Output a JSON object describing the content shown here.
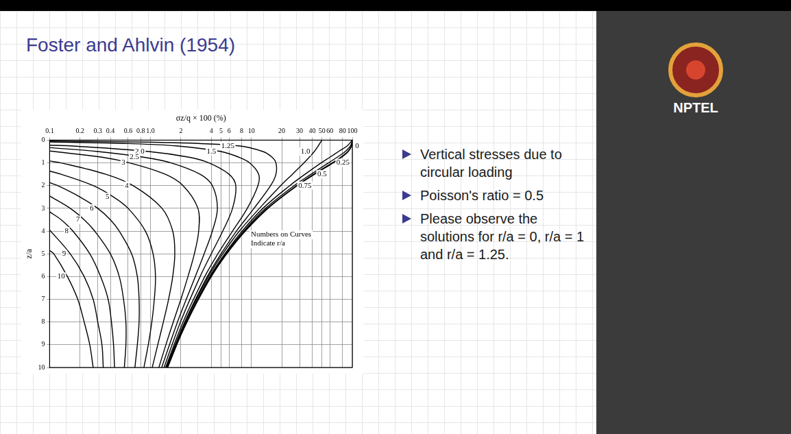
{
  "slide": {
    "title": "Foster and Ahlvin (1954)",
    "bullets": [
      "Vertical stresses due to circular loading",
      "Poisson's ratio = 0.5",
      "Please observe the solutions for r/a = 0, r/a = 1 and r/a = 1.25."
    ],
    "logo": "NPTEL"
  },
  "chart_data": {
    "type": "line",
    "x_label": "σz/q × 100 (%)",
    "y_label": "z/a",
    "annotations": [
      "Numbers on Curves Indicate r/a"
    ],
    "log": "x",
    "grid": true,
    "color": "#000000",
    "xlim": [
      0.1,
      100
    ],
    "xticks": [
      0.1,
      0.2,
      0.3,
      0.4,
      0.6,
      0.8,
      {
        "value": 1,
        "label": "1.0"
      },
      2,
      4,
      5,
      6,
      8,
      10,
      20,
      30,
      40,
      50,
      60,
      80,
      100
    ],
    "ylim": [
      10,
      0
    ],
    "yticks": [
      0,
      1,
      2,
      3,
      4,
      5,
      6,
      7,
      8,
      9,
      10
    ],
    "series": [
      {
        "name": "0",
        "x": [
          100,
          98.6,
          91.1,
          78.4,
          64.6,
          42.4,
          28.5,
          14.6,
          8.7,
          5.7,
          4.0,
          2.99,
          2.3,
          1.81,
          1.48
        ],
        "values": [
          0,
          0.25,
          0.5,
          0.75,
          1,
          1.5,
          2,
          3,
          4,
          5,
          6,
          7,
          8,
          9,
          10
        ]
      },
      {
        "name": "0.25",
        "x": [
          100,
          98,
          90,
          77,
          63,
          41.5,
          28,
          14.4,
          8.6,
          5.65,
          3.98,
          2.28,
          1.47
        ],
        "values": [
          0,
          0.25,
          0.5,
          0.75,
          1,
          1.5,
          2,
          3,
          4,
          5,
          6,
          8,
          10
        ]
      },
      {
        "name": "0.5",
        "x": [
          100,
          96,
          85,
          71,
          58,
          39,
          26.5,
          13.8,
          8.4,
          5.55,
          3.93,
          2.27,
          1.47
        ],
        "values": [
          0,
          0.25,
          0.5,
          0.75,
          1,
          1.5,
          2,
          3,
          4,
          5,
          6,
          8,
          10
        ]
      },
      {
        "name": "0.75",
        "x": [
          100,
          89,
          73,
          60,
          49,
          34,
          24,
          13,
          8.1,
          5.45,
          3.87,
          2.25,
          1.46
        ],
        "values": [
          0,
          0.25,
          0.5,
          0.75,
          1,
          1.5,
          2,
          3,
          4,
          5,
          6,
          8,
          10
        ]
      },
      {
        "name": "1.0",
        "x": [
          50,
          46,
          42,
          37.5,
          33.2,
          25.5,
          19.5,
          12,
          7.6,
          5.2,
          3.75,
          2.2,
          1.45
        ],
        "values": [
          0,
          0.25,
          0.5,
          0.75,
          1,
          1.5,
          2,
          3,
          4,
          5,
          6,
          8,
          10
        ]
      },
      {
        "name": "1.25",
        "x": [
          0.1,
          1.3,
          7.5,
          13,
          16,
          17.5,
          17.5,
          15.5,
          10.6,
          7.1,
          5.0,
          3.65,
          2.18,
          1.43
        ],
        "values": [
          0.04,
          0.1,
          0.25,
          0.5,
          0.75,
          1,
          1.5,
          2,
          3,
          4,
          5,
          6,
          8,
          10
        ]
      },
      {
        "name": "1.5",
        "x": [
          0.1,
          0.6,
          1.8,
          5.0,
          7.5,
          9.6,
          11.8,
          11.6,
          9.1,
          6.5,
          4.65,
          3.45,
          2.1,
          1.41
        ],
        "values": [
          0.08,
          0.15,
          0.25,
          0.5,
          0.75,
          1,
          1.5,
          2,
          3,
          4,
          5,
          6,
          8,
          10
        ]
      },
      {
        "name": "2.0",
        "x": [
          0.1,
          0.16,
          0.96,
          2.4,
          3.8,
          6.0,
          7.0,
          6.5,
          5.2,
          4.0,
          3.1,
          1.98,
          1.36
        ],
        "values": [
          0.22,
          0.25,
          0.5,
          0.75,
          1,
          1.5,
          2,
          3,
          4,
          5,
          6,
          8,
          10
        ]
      },
      {
        "name": "2.5",
        "x": [
          0.1,
          0.3,
          0.85,
          1.6,
          3.1,
          4.1,
          4.6,
          4.1,
          3.4,
          2.78,
          1.85,
          1.29
        ],
        "values": [
          0.33,
          0.5,
          0.75,
          1,
          1.5,
          2,
          3,
          4,
          5,
          6,
          8,
          10
        ]
      },
      {
        "name": "3",
        "x": [
          0.1,
          0.33,
          0.62,
          1.4,
          2.1,
          2.95,
          3.0,
          2.72,
          2.35,
          2.0,
          1.68,
          1.42,
          1.21
        ],
        "values": [
          0.48,
          0.75,
          1,
          1.5,
          2,
          3,
          4,
          5,
          6,
          7,
          8,
          9,
          10
        ]
      },
      {
        "name": "4",
        "x": [
          0.1,
          0.13,
          0.36,
          0.67,
          1.3,
          1.66,
          1.74,
          1.66,
          1.51,
          1.34,
          1.18,
          1.04
        ],
        "values": [
          0.92,
          1,
          1.5,
          2,
          3,
          4,
          5,
          6,
          7,
          8,
          9,
          10
        ]
      },
      {
        "name": "5",
        "x": [
          0.1,
          0.13,
          0.27,
          0.43,
          0.6,
          0.89,
          1.06,
          1.12,
          1.09,
          1.03,
          0.95,
          0.86
        ],
        "values": [
          1.36,
          1.5,
          2,
          2.5,
          3,
          4,
          5,
          6,
          7,
          8,
          9,
          10
        ]
      },
      {
        "name": "6",
        "x": [
          0.1,
          0.12,
          0.2,
          0.3,
          0.4,
          0.49,
          0.65,
          0.74,
          0.77,
          0.77,
          0.74,
          0.7
        ],
        "values": [
          1.87,
          2,
          2.5,
          3,
          3.5,
          4,
          5,
          6,
          7,
          8,
          9,
          10
        ]
      },
      {
        "name": "7",
        "x": [
          0.1,
          0.16,
          0.22,
          0.28,
          0.4,
          0.49,
          0.54,
          0.57,
          0.57,
          0.55
        ],
        "values": [
          2.46,
          3,
          3.5,
          4,
          5,
          6,
          7,
          8,
          9,
          10
        ]
      },
      {
        "name": "8",
        "x": [
          0.1,
          0.13,
          0.17,
          0.25,
          0.32,
          0.38,
          0.41,
          0.43,
          0.44
        ],
        "values": [
          3.15,
          3.5,
          4,
          5,
          6,
          7,
          8,
          9,
          10
        ]
      },
      {
        "name": "9",
        "x": [
          0.1,
          0.16,
          0.22,
          0.27,
          0.3,
          0.33,
          0.34
        ],
        "values": [
          3.95,
          5,
          6,
          7,
          8,
          9,
          10
        ]
      },
      {
        "name": "10",
        "x": [
          0.1,
          0.11,
          0.15,
          0.19,
          0.22,
          0.25,
          0.27
        ],
        "values": [
          4.85,
          5,
          6,
          7,
          8,
          9,
          10
        ]
      }
    ]
  }
}
